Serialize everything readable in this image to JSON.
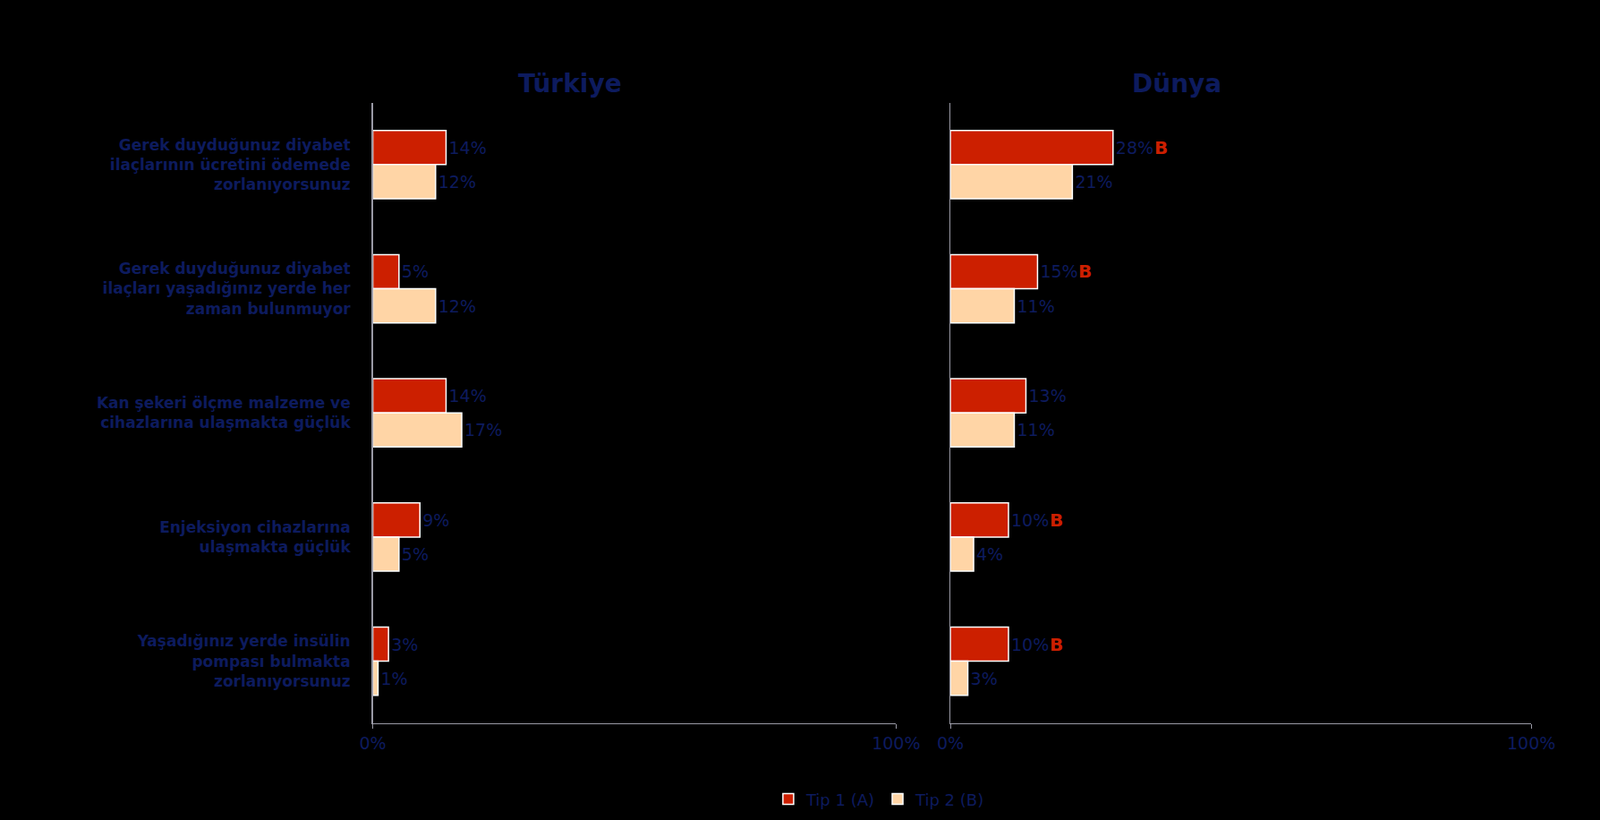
{
  "chart_data": [
    {
      "type": "bar",
      "title": "Türkiye",
      "orientation": "horizontal",
      "data_labels": true,
      "legend": "bottom",
      "categories": [
        "Gerek duyduğunuz diyabet ilaçlarının ücretini ödemede zorlanıyorsunuz",
        "Gerek duyduğunuz diyabet ilaçları yaşadığınız yerde her zaman bulunmuyor",
        "Kan şekeri ölçme malzeme ve cihazlarına ulaşmakta güçlük",
        "Enjeksiyon cihazlarına ulaşmakta güçlük",
        "Yaşadığınız yerde insülin pompası bulmakta zorlanıyorsunuz"
      ],
      "series": [
        {
          "name": "Tip 1 (A)",
          "color": "#cc1f00",
          "values": [
            14,
            5,
            14,
            9,
            3
          ],
          "value_labels": [
            "14%",
            "5%",
            "14%",
            "9%",
            "3%"
          ]
        },
        {
          "name": "Tip 2 (B)",
          "color": "#ffd5a6",
          "values": [
            12,
            12,
            17,
            5,
            1
          ],
          "value_labels": [
            "12%",
            "12%",
            "17%",
            "5%",
            "1%"
          ]
        }
      ],
      "xlim": [
        0,
        100
      ],
      "xticks": [
        {
          "value": 0,
          "label": "0%"
        },
        {
          "value": 100,
          "label": "100%"
        }
      ]
    },
    {
      "type": "bar",
      "title": "Dünya",
      "orientation": "horizontal",
      "data_labels": true,
      "legend": "bottom",
      "tick_labels": "x",
      "categories": [
        "Gerek duyduğunuz diyabet ilaçlarının ücretini ödemede zorlanıyorsunuz",
        "Gerek duyduğunuz diyabet ilaçları yaşadığınız yerde her zaman bulunmuyor",
        "Kan şekeri ölçme malzeme ve cihazlarına ulaşmakta güçlük",
        "Enjeksiyon cihazlarına ulaşmakta güçlük",
        "Yaşadığınız yerde insülin pompası bulmakta zorlanıyorsunuz"
      ],
      "series": [
        {
          "name": "Tip 1 (A)",
          "color": "#cc1f00",
          "values": [
            28,
            15,
            13,
            10,
            10
          ],
          "value_labels": [
            "28%",
            "15%",
            "13%",
            "10%",
            "10%"
          ]
        },
        {
          "name": "Tip 2 (B)",
          "color": "#ffd5a6",
          "values": [
            21,
            11,
            11,
            4,
            3
          ],
          "value_labels": [
            "21%",
            "11%",
            "11%",
            "4%",
            "3%"
          ]
        }
      ],
      "annotations": [
        {
          "text": "B",
          "series": "Tip 1 (A)",
          "category": "Gerek duyduğunuz diyabet ilaçlarının ücretini ödemede zorlanıyorsunuz"
        },
        {
          "text": "B",
          "series": "Tip 1 (A)",
          "category": "Gerek duyduğunuz diyabet ilaçları yaşadığınız yerde her zaman bulunmuyor"
        },
        {
          "text": "B",
          "series": "Tip 1 (A)",
          "category": "Enjeksiyon cihazlarına ulaşmakta güçlük"
        },
        {
          "text": "B",
          "series": "Tip 1 (A)",
          "category": "Yaşadığınız yerde insülin pompası bulmakta zorlanıyorsunuz"
        }
      ],
      "xlim": [
        0,
        100
      ],
      "xticks": [
        {
          "value": 0,
          "label": "0%"
        },
        {
          "value": 100,
          "label": "100%"
        }
      ]
    }
  ]
}
